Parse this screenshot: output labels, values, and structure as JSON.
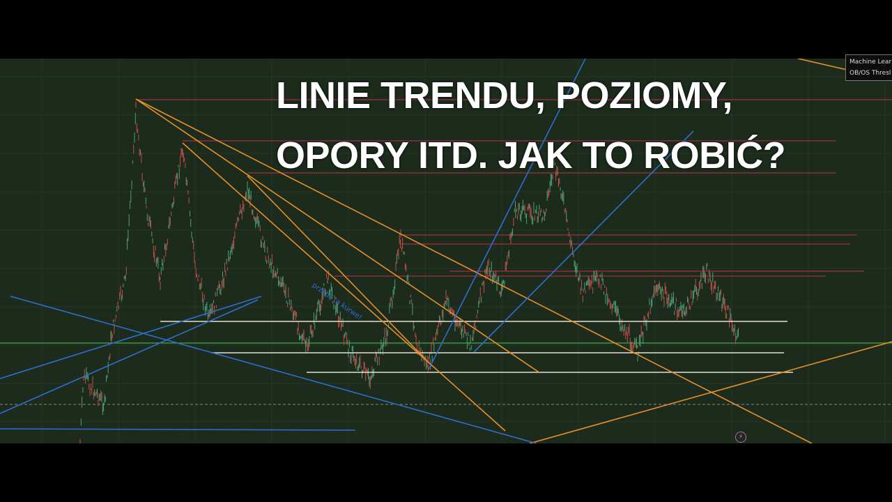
{
  "title": {
    "line1": "LINIE TRENDU, POZIOMY,",
    "line2": "OPORY ITD. JAK TO ROBIĆ?"
  },
  "legend": {
    "items": [
      "Machine Lear",
      "OB/OS Thresl"
    ]
  },
  "annotation": "przebij tą kurwe!",
  "icons": {
    "alert": "lightning-icon"
  },
  "colors": {
    "background": "#1c2b1c",
    "trendline_orange": "#e8902a",
    "trendline_blue": "#2f6fd0",
    "support_white": "#e8e0d0",
    "resistance_red": "#a0304a",
    "level_green": "#3fae3f",
    "candle_up": "#4aa37a",
    "candle_down": "#c0504a"
  }
}
